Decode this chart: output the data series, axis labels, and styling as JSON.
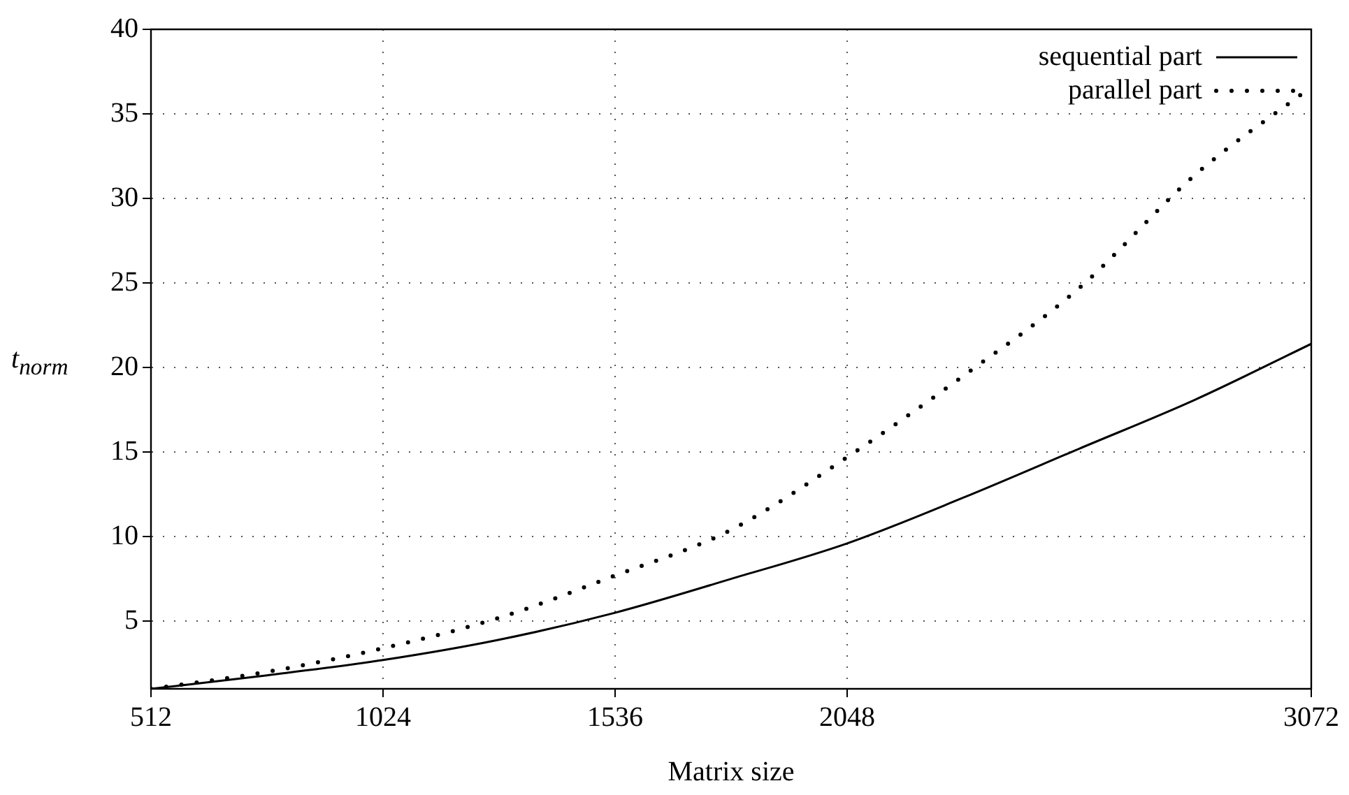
{
  "chart_data": {
    "type": "line",
    "xlabel": "Matrix size",
    "ylabel": "t$_{norm}$",
    "x": [
      512,
      768,
      1024,
      1280,
      1536,
      1792,
      2048,
      2304,
      2560,
      2816,
      3072
    ],
    "series": [
      {
        "name": "sequential part",
        "color": "#000000",
        "line_style": "solid",
        "values": [
          1,
          1.8,
          2.7,
          3.9,
          5.5,
          7.5,
          9.6,
          12.3,
          15.2,
          18.1,
          21.4
        ]
      },
      {
        "name": "parallel part",
        "color": "#000000",
        "line_style": "dotted",
        "values": [
          1,
          2.0,
          3.4,
          5.2,
          7.7,
          10.4,
          14.7,
          19.5,
          24.7,
          31.4,
          36.6
        ]
      }
    ],
    "xlim": [
      512,
      3072
    ],
    "xticks": [
      512,
      1024,
      1536,
      2048,
      3072
    ],
    "ylim": [
      1,
      40
    ],
    "yticks": [
      5,
      10,
      15,
      20,
      25,
      30,
      35,
      40
    ],
    "grid": true,
    "legend": "top right",
    "marker": "none"
  }
}
